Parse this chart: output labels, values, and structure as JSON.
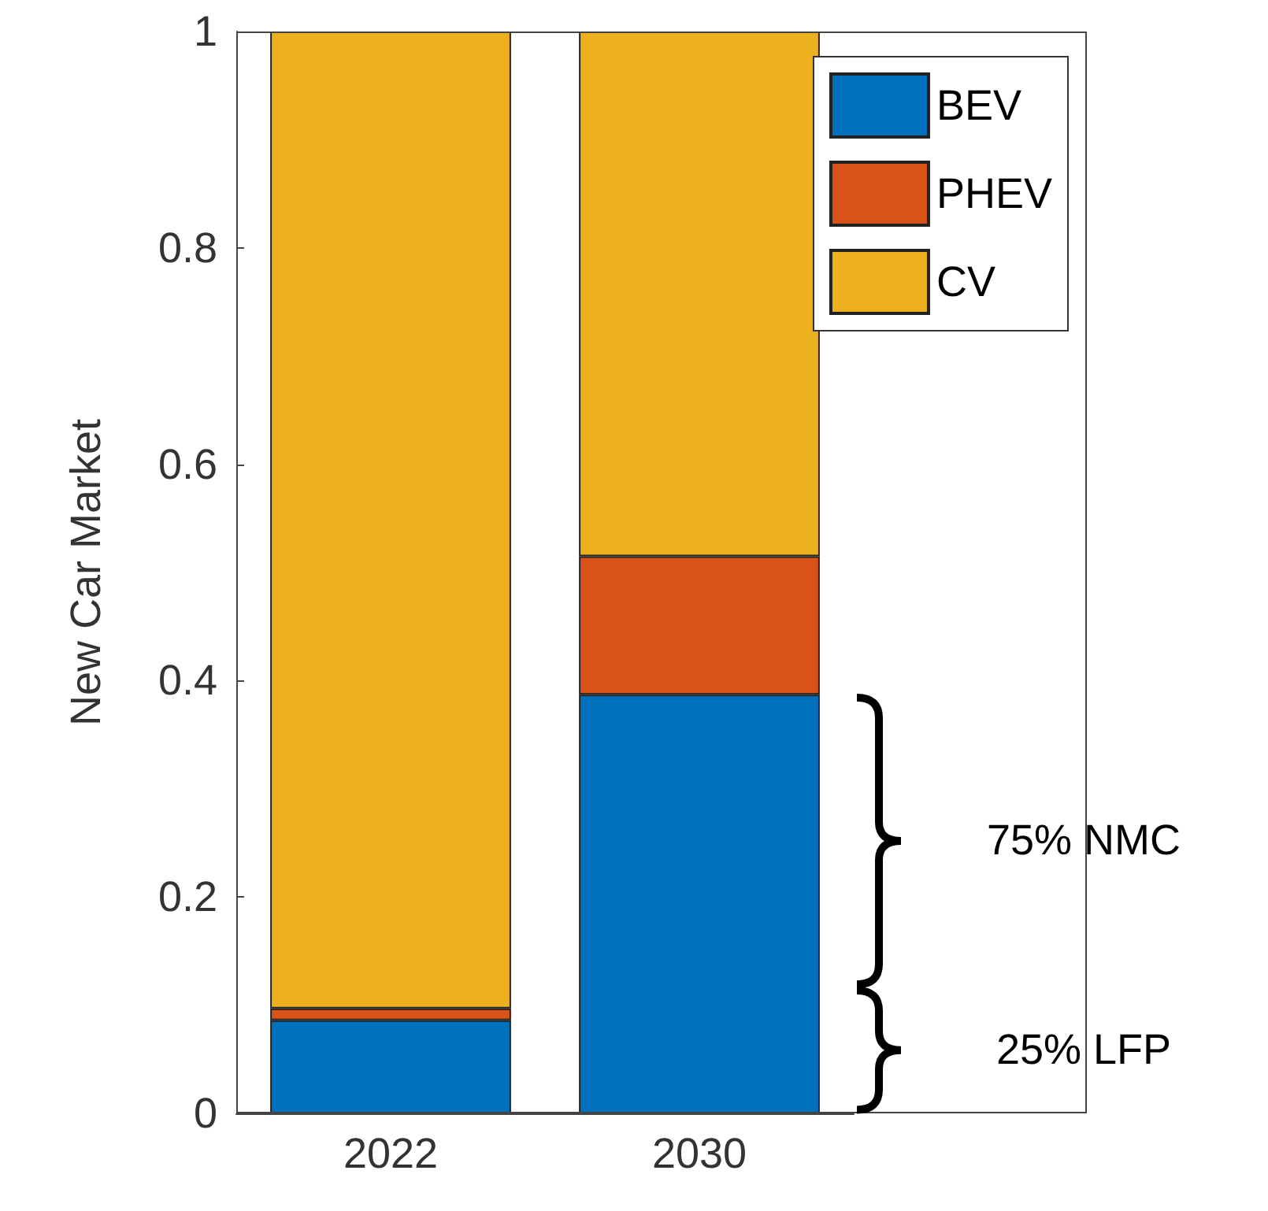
{
  "chart_data": {
    "type": "bar",
    "ylabel": "New Car Market",
    "categories": [
      "2022",
      "2030"
    ],
    "stacked": true,
    "series": [
      {
        "name": "BEV",
        "color": "#0072bd",
        "values": [
          0.086,
          0.387
        ]
      },
      {
        "name": "PHEV",
        "color": "#d95319",
        "values": [
          0.011,
          0.128
        ]
      },
      {
        "name": "CV",
        "color": "#edb120",
        "values": [
          0.903,
          0.485
        ]
      }
    ],
    "ylim": [
      0,
      1
    ],
    "yticks": [
      0,
      0.2,
      0.4,
      0.6,
      0.8,
      1
    ],
    "grid": false,
    "legend": "top right",
    "annotations": [
      "75% NMC",
      "25% LFP"
    ]
  }
}
